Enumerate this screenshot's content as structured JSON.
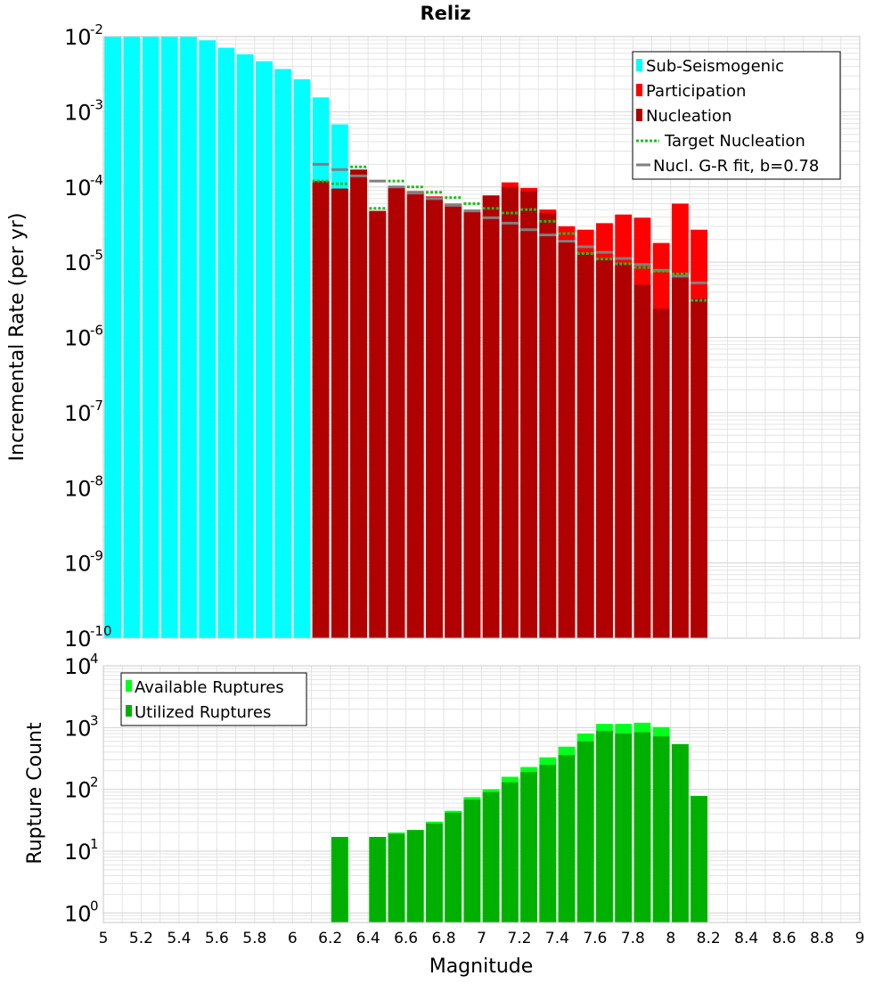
{
  "title": "Reliz",
  "colors": {
    "sub_seismogenic": "#00ffff",
    "participation": "#ff0000",
    "nucleation": "#b10000",
    "target_nucleation": "#1fbf1f",
    "gr_fit": "#808080",
    "available": "#00ff1a",
    "utilized": "#00b000",
    "grid": "#e4e4e4"
  },
  "chart_data": [
    {
      "type": "bar",
      "title": "Reliz",
      "xlabel": "",
      "ylabel": "Incremental Rate (per yr)",
      "y_scale": "log",
      "xlim": [
        5,
        9
      ],
      "ylim": [
        1e-10,
        0.01
      ],
      "grid": true,
      "legend_position": "top-right",
      "y_ticks": [
        {
          "base": "10",
          "exp": "-10"
        },
        {
          "base": "10",
          "exp": "-9"
        },
        {
          "base": "10",
          "exp": "-8"
        },
        {
          "base": "10",
          "exp": "-7"
        },
        {
          "base": "10",
          "exp": "-6"
        },
        {
          "base": "10",
          "exp": "-5"
        },
        {
          "base": "10",
          "exp": "-4"
        },
        {
          "base": "10",
          "exp": "-3"
        },
        {
          "base": "10",
          "exp": "-2"
        }
      ],
      "legend": [
        "Sub-Seismogenic",
        "Participation",
        "Nucleation",
        "Target Nucleation",
        "Nucl. G-R fit, b=0.78"
      ],
      "series": [
        {
          "name": "Sub-Seismogenic",
          "style": "bar",
          "x": [
            5.05,
            5.15,
            5.25,
            5.35,
            5.45,
            5.55,
            5.65,
            5.75,
            5.85,
            5.95,
            6.05,
            6.15,
            6.25
          ],
          "values": [
            0.01,
            0.01,
            0.01,
            0.01,
            0.01,
            0.0089,
            0.0071,
            0.0058,
            0.0047,
            0.0037,
            0.0027,
            0.00155,
            0.00068
          ]
        },
        {
          "name": "Participation",
          "style": "bar",
          "x": [
            6.15,
            6.25,
            6.35,
            6.45,
            6.55,
            6.65,
            6.75,
            6.85,
            6.95,
            7.05,
            7.15,
            7.25,
            7.35,
            7.45,
            7.55,
            7.65,
            7.75,
            7.85,
            7.95,
            8.05,
            8.15
          ],
          "values": [
            0.00012,
            9.5e-05,
            0.00017,
            4.8e-05,
            0.0001,
            8.8e-05,
            7.5e-05,
            6e-05,
            4.8e-05,
            7.7e-05,
            0.000115,
            9.7e-05,
            5e-05,
            3e-05,
            2.7e-05,
            3.3e-05,
            4.3e-05,
            3.9e-05,
            1.8e-05,
            6e-05,
            2.7e-05
          ]
        },
        {
          "name": "Nucleation",
          "style": "bar",
          "x": [
            6.15,
            6.25,
            6.35,
            6.45,
            6.55,
            6.65,
            6.75,
            6.85,
            6.95,
            7.05,
            7.15,
            7.25,
            7.35,
            7.45,
            7.55,
            7.65,
            7.75,
            7.85,
            7.95,
            8.05,
            8.15
          ],
          "values": [
            0.00012,
            9.5e-05,
            0.00017,
            4.8e-05,
            0.0001,
            8.5e-05,
            7.2e-05,
            5.8e-05,
            4.6e-05,
            7.7e-05,
            0.0001,
            8.8e-05,
            4.5e-05,
            2e-05,
            1.3e-05,
            1.1e-05,
            9.5e-06,
            5e-06,
            2.4e-06,
            6.5e-06,
            3.3e-06
          ]
        },
        {
          "name": "Target Nucleation",
          "style": "dotted-segment",
          "x": [
            6.15,
            6.25,
            6.35,
            6.45,
            6.55,
            6.65,
            6.75,
            6.85,
            6.95,
            7.05,
            7.15,
            7.25,
            7.35,
            7.45,
            7.55,
            7.65,
            7.75,
            7.85,
            7.95,
            8.05,
            8.15
          ],
          "values": [
            0.00012,
            0.00011,
            0.000185,
            5.2e-05,
            0.00012,
            0.0001,
            8.5e-05,
            7.2e-05,
            6e-05,
            5.2e-05,
            4.5e-05,
            5e-05,
            3.5e-05,
            2.4e-05,
            1.3e-05,
            1.1e-05,
            9.5e-06,
            8.5e-06,
            7.6e-06,
            7e-06,
            3.1e-06
          ]
        },
        {
          "name": "Nucl. G-R fit, b=0.78",
          "style": "segment",
          "x": [
            6.15,
            6.25,
            6.35,
            6.45,
            6.55,
            6.65,
            6.75,
            6.85,
            6.95,
            7.05,
            7.15,
            7.25,
            7.35,
            7.45,
            7.55,
            7.65,
            7.75,
            7.85,
            7.95,
            8.05,
            8.15
          ],
          "values": [
            0.0002,
            0.00017,
            0.00014,
            0.00012,
            0.0001,
            8.3e-05,
            7e-05,
            5.7e-05,
            4.8e-05,
            3.9e-05,
            3.3e-05,
            2.7e-05,
            2.3e-05,
            1.9e-05,
            1.6e-05,
            1.35e-05,
            1.12e-05,
            9.3e-06,
            7.8e-06,
            6.5e-06,
            5.3e-06
          ]
        }
      ]
    },
    {
      "type": "bar",
      "xlabel": "Magnitude",
      "ylabel": "Rupture Count",
      "y_scale": "log",
      "xlim": [
        5,
        9
      ],
      "ylim": [
        0.7,
        10000
      ],
      "grid": true,
      "legend_position": "top-left",
      "x_ticks": [
        "5",
        "5.2",
        "5.4",
        "5.6",
        "5.8",
        "6",
        "6.2",
        "6.4",
        "6.6",
        "6.8",
        "7",
        "7.2",
        "7.4",
        "7.6",
        "7.8",
        "8",
        "8.2",
        "8.4",
        "8.6",
        "8.8",
        "9"
      ],
      "y_ticks": [
        {
          "base": "10",
          "exp": "0"
        },
        {
          "base": "10",
          "exp": "1"
        },
        {
          "base": "10",
          "exp": "2"
        },
        {
          "base": "10",
          "exp": "3"
        },
        {
          "base": "10",
          "exp": "4"
        }
      ],
      "legend": [
        "Available Ruptures",
        "Utilized Ruptures"
      ],
      "series": [
        {
          "name": "Available Ruptures",
          "x": [
            6.25,
            6.45,
            6.55,
            6.65,
            6.75,
            6.85,
            6.95,
            7.05,
            7.15,
            7.25,
            7.35,
            7.45,
            7.55,
            7.65,
            7.75,
            7.85,
            7.95,
            8.05,
            8.15
          ],
          "values": [
            17,
            17,
            20,
            22,
            30,
            45,
            75,
            100,
            160,
            230,
            330,
            490,
            800,
            1150,
            1150,
            1200,
            1020,
            540,
            78
          ]
        },
        {
          "name": "Utilized Ruptures",
          "x": [
            6.25,
            6.45,
            6.55,
            6.65,
            6.75,
            6.85,
            6.95,
            7.05,
            7.15,
            7.25,
            7.35,
            7.45,
            7.55,
            7.65,
            7.75,
            7.85,
            7.95,
            8.05,
            8.15
          ],
          "values": [
            17,
            17,
            19,
            22,
            28,
            42,
            68,
            90,
            130,
            190,
            250,
            360,
            600,
            880,
            800,
            840,
            720,
            540,
            78
          ]
        }
      ]
    }
  ]
}
